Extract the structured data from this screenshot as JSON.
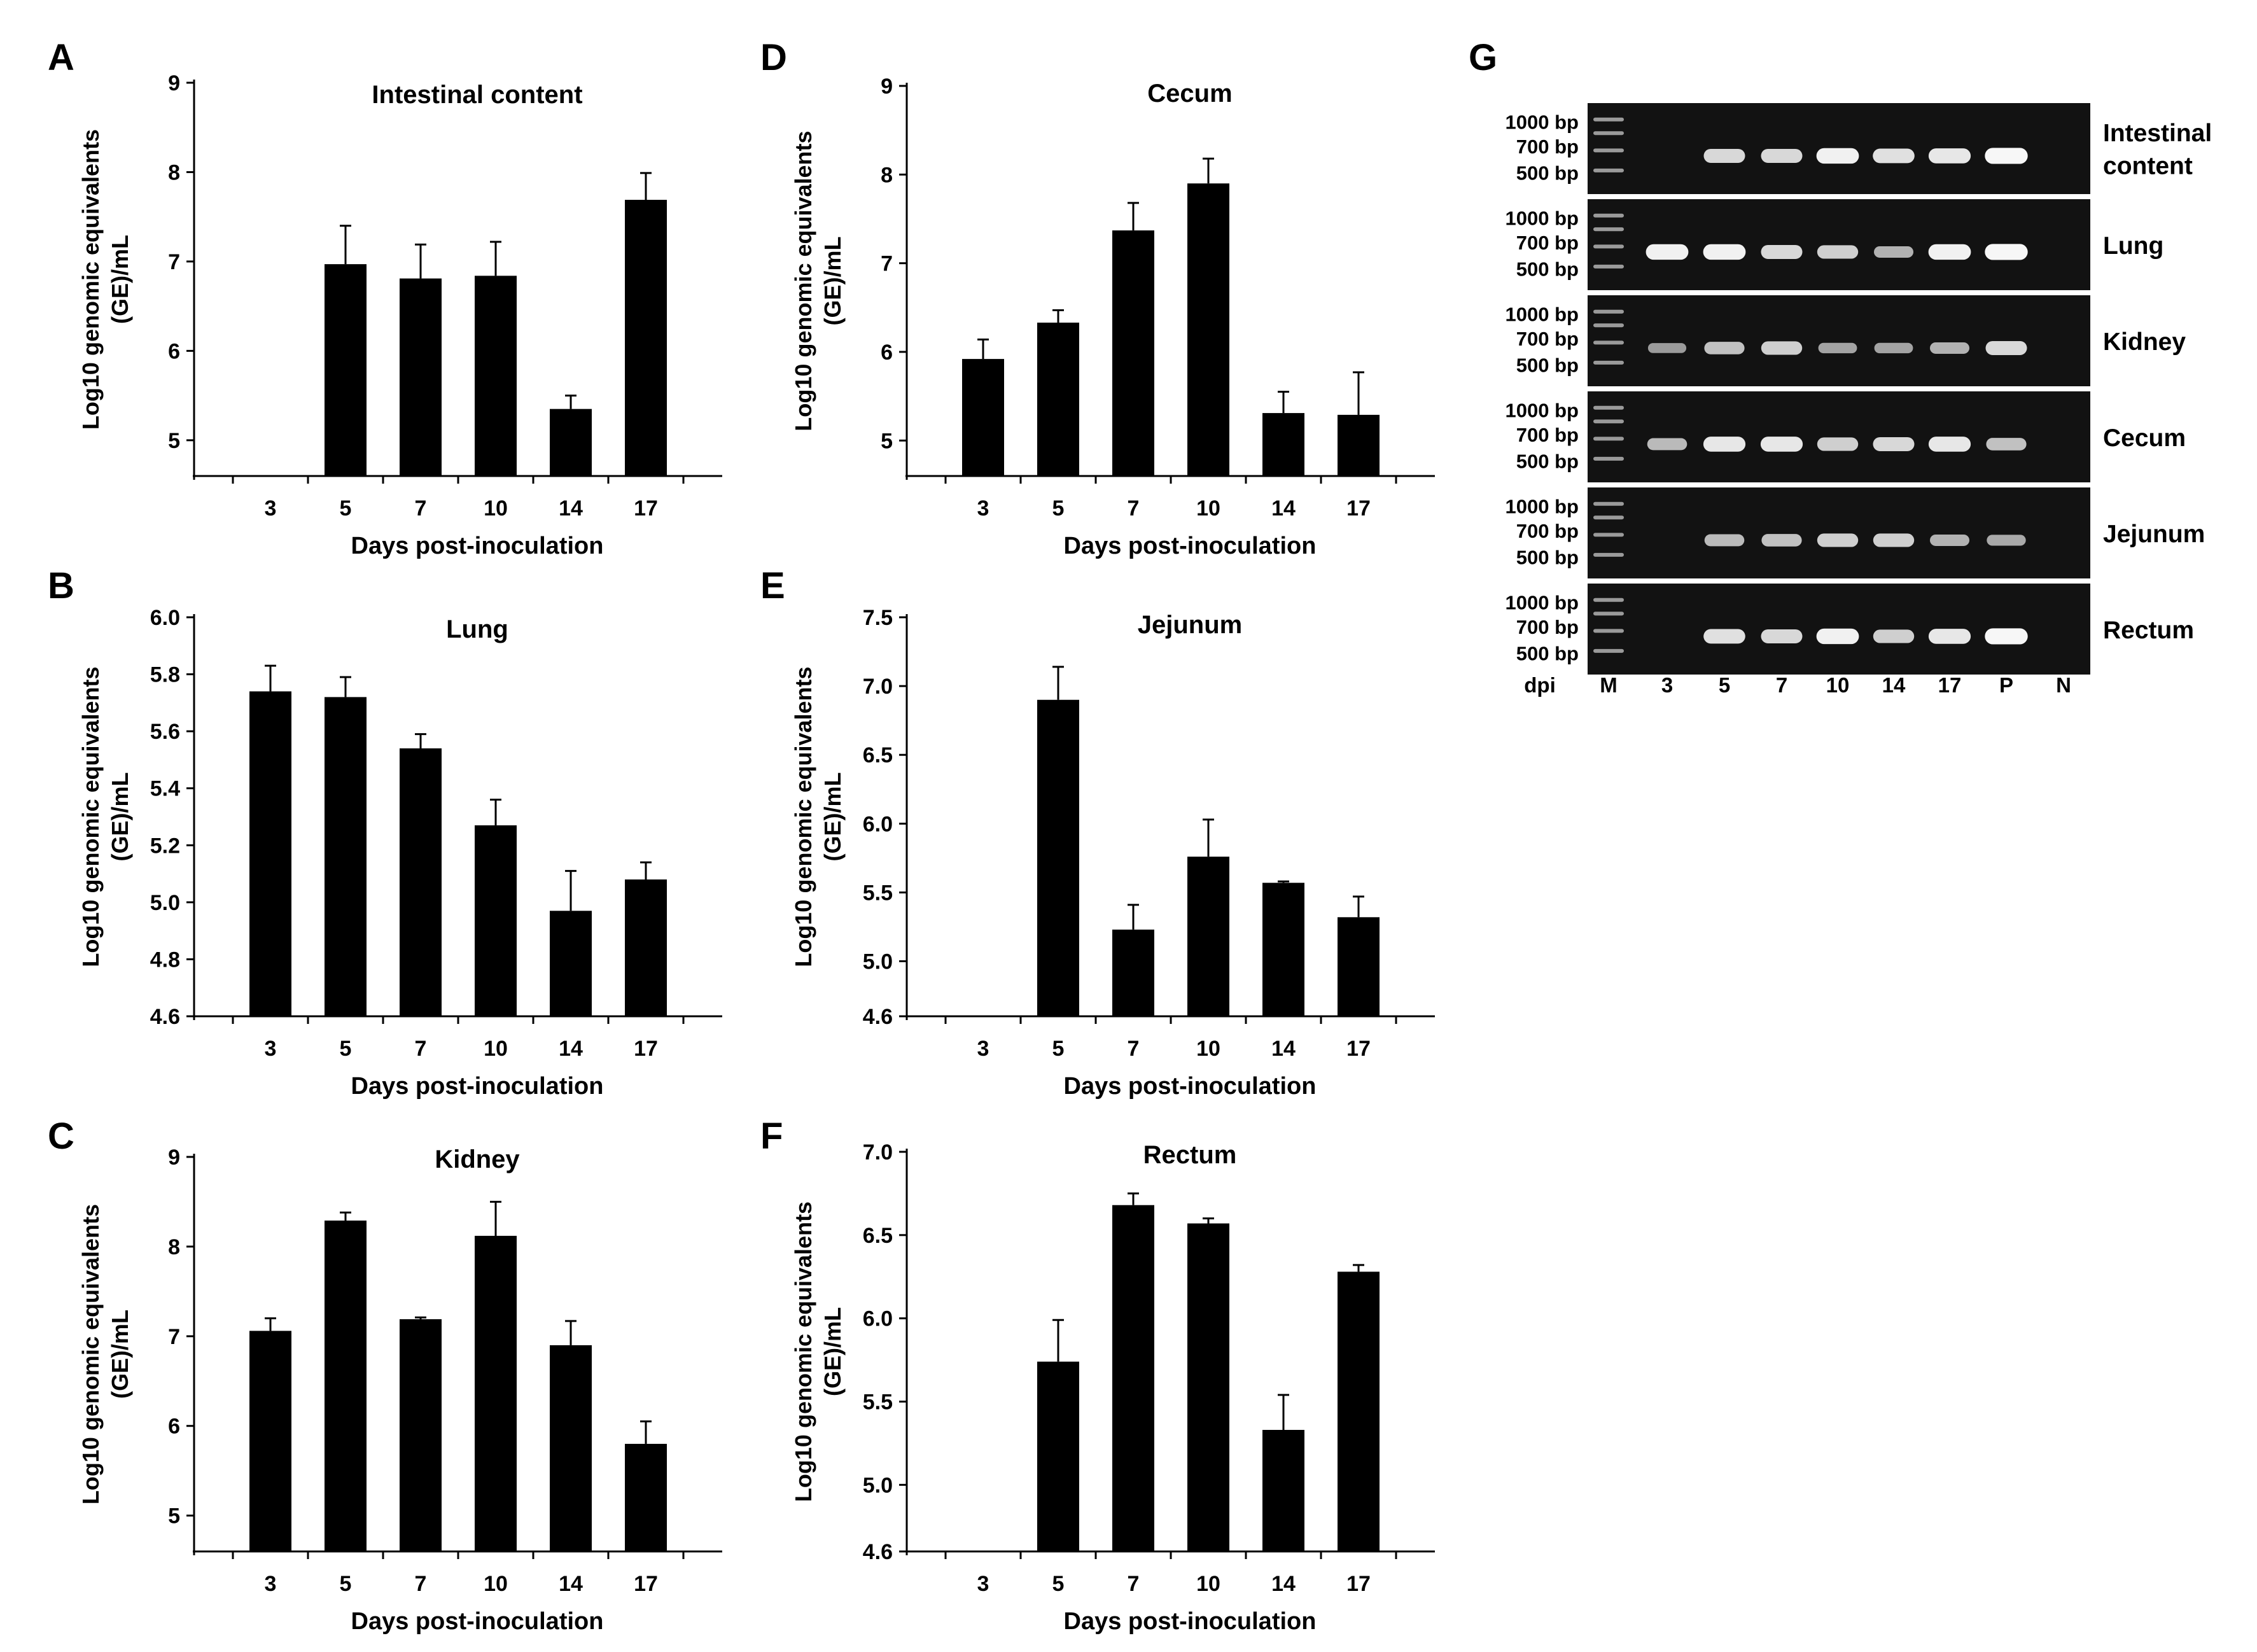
{
  "figure": {
    "x_label": "Days post-inoculation",
    "y_label_line1": "Log10 genomic equivalents",
    "y_label_line2": "(GE)/mL"
  },
  "chart_data": [
    {
      "id": "A",
      "letter": "A",
      "type": "bar",
      "title": "Intestinal content",
      "categories": [
        "3",
        "5",
        "7",
        "10",
        "14",
        "17"
      ],
      "values": [
        null,
        6.97,
        6.81,
        6.84,
        5.35,
        7.69
      ],
      "errors": [
        null,
        0.43,
        0.38,
        0.38,
        0.15,
        0.3
      ],
      "ylim": [
        4.6,
        9
      ],
      "yticks": [
        "5",
        "6",
        "7",
        "8",
        "9"
      ],
      "xlabel": "Days post-inoculation",
      "ylabel": "Log10 genomic equivalents (GE)/mL",
      "grid": false
    },
    {
      "id": "B",
      "letter": "B",
      "type": "bar",
      "title": "Lung",
      "categories": [
        "3",
        "5",
        "7",
        "10",
        "14",
        "17"
      ],
      "values": [
        5.74,
        5.72,
        5.54,
        5.27,
        4.97,
        5.08
      ],
      "errors": [
        0.09,
        0.07,
        0.05,
        0.09,
        0.14,
        0.06
      ],
      "ylim": [
        4.6,
        6.0
      ],
      "yticks": [
        "4.6",
        "4.8",
        "5.0",
        "5.2",
        "5.4",
        "5.6",
        "5.8",
        "6.0"
      ],
      "xlabel": "Days post-inoculation",
      "ylabel": "Log10 genomic equivalents (GE)/mL",
      "grid": false
    },
    {
      "id": "C",
      "letter": "C",
      "type": "bar",
      "title": "Kidney",
      "categories": [
        "3",
        "5",
        "7",
        "10",
        "14",
        "17"
      ],
      "values": [
        7.06,
        8.29,
        7.19,
        8.12,
        6.9,
        5.8
      ],
      "errors": [
        0.14,
        0.09,
        0.02,
        0.38,
        0.27,
        0.25
      ],
      "ylim": [
        4.6,
        9
      ],
      "yticks": [
        "5",
        "6",
        "7",
        "8",
        "9"
      ],
      "xlabel": "Days post-inoculation",
      "ylabel": "Log10 genomic equivalents (GE)/mL",
      "grid": false
    },
    {
      "id": "D",
      "letter": "D",
      "type": "bar",
      "title": "Cecum",
      "categories": [
        "3",
        "5",
        "7",
        "10",
        "14",
        "17"
      ],
      "values": [
        5.92,
        6.33,
        7.37,
        7.9,
        5.31,
        5.29
      ],
      "errors": [
        0.22,
        0.14,
        0.31,
        0.28,
        0.24,
        0.48
      ],
      "ylim": [
        4.6,
        9
      ],
      "yticks": [
        "5",
        "6",
        "7",
        "8",
        "9"
      ],
      "xlabel": "Days post-inoculation",
      "ylabel": "Log10 genomic equivalents (GE)/mL",
      "grid": false
    },
    {
      "id": "E",
      "letter": "E",
      "type": "bar",
      "title": "Jejunum",
      "categories": [
        "3",
        "5",
        "7",
        "10",
        "14",
        "17"
      ],
      "values": [
        null,
        6.9,
        5.23,
        5.76,
        5.57,
        5.32
      ],
      "errors": [
        null,
        0.24,
        0.18,
        0.27,
        0.01,
        0.15
      ],
      "ylim": [
        4.6,
        7.5
      ],
      "yticks": [
        "4.6",
        "5.0",
        "5.5",
        "6.0",
        "6.5",
        "7.0",
        "7.5"
      ],
      "xlabel": "Days post-inoculation",
      "ylabel": "Log10 genomic equivalents (GE)/mL",
      "grid": false
    },
    {
      "id": "F",
      "letter": "F",
      "type": "bar",
      "title": "Rectum",
      "categories": [
        "3",
        "5",
        "7",
        "10",
        "14",
        "17"
      ],
      "values": [
        null,
        5.74,
        6.68,
        6.57,
        5.33,
        6.28
      ],
      "errors": [
        null,
        0.25,
        0.07,
        0.03,
        0.21,
        0.04
      ],
      "ylim": [
        4.6,
        7.0
      ],
      "yticks": [
        "4.6",
        "5.0",
        "5.5",
        "6.0",
        "6.5",
        "7.0"
      ],
      "xlabel": "Days post-inoculation",
      "ylabel": "Log10 genomic equivalents (GE)/mL",
      "grid": false
    }
  ],
  "gel": {
    "letter": "G",
    "lanes": [
      "dpi",
      "M",
      "3",
      "5",
      "7",
      "10",
      "14",
      "17",
      "P",
      "N"
    ],
    "marker_labels": [
      "1000 bp",
      "700 bp",
      "500 bp"
    ],
    "rows": [
      {
        "name": "Intestinal content",
        "name_line1": "Intestinal",
        "name_line2": "content",
        "bands": [
          0,
          0.75,
          0.75,
          0.9,
          0.8,
          0.85,
          0.95,
          0
        ]
      },
      {
        "name": "Lung",
        "name_line1": "Lung",
        "name_line2": "",
        "bands": [
          0.9,
          0.9,
          0.75,
          0.7,
          0.5,
          0.9,
          0.95,
          0
        ]
      },
      {
        "name": "Kidney",
        "name_line1": "Kidney",
        "name_line2": "",
        "bands": [
          0.35,
          0.6,
          0.7,
          0.4,
          0.4,
          0.5,
          0.75,
          0
        ]
      },
      {
        "name": "Cecum",
        "name_line1": "Cecum",
        "name_line2": "",
        "bands": [
          0.55,
          0.85,
          0.85,
          0.7,
          0.75,
          0.85,
          0.6,
          0
        ]
      },
      {
        "name": "Jejunum",
        "name_line1": "Jejunum",
        "name_line2": "",
        "bands": [
          0,
          0.55,
          0.6,
          0.7,
          0.7,
          0.5,
          0.45,
          0
        ]
      },
      {
        "name": "Rectum",
        "name_line1": "Rectum",
        "name_line2": "",
        "bands": [
          0,
          0.8,
          0.75,
          0.9,
          0.7,
          0.85,
          0.95,
          0
        ]
      }
    ]
  }
}
